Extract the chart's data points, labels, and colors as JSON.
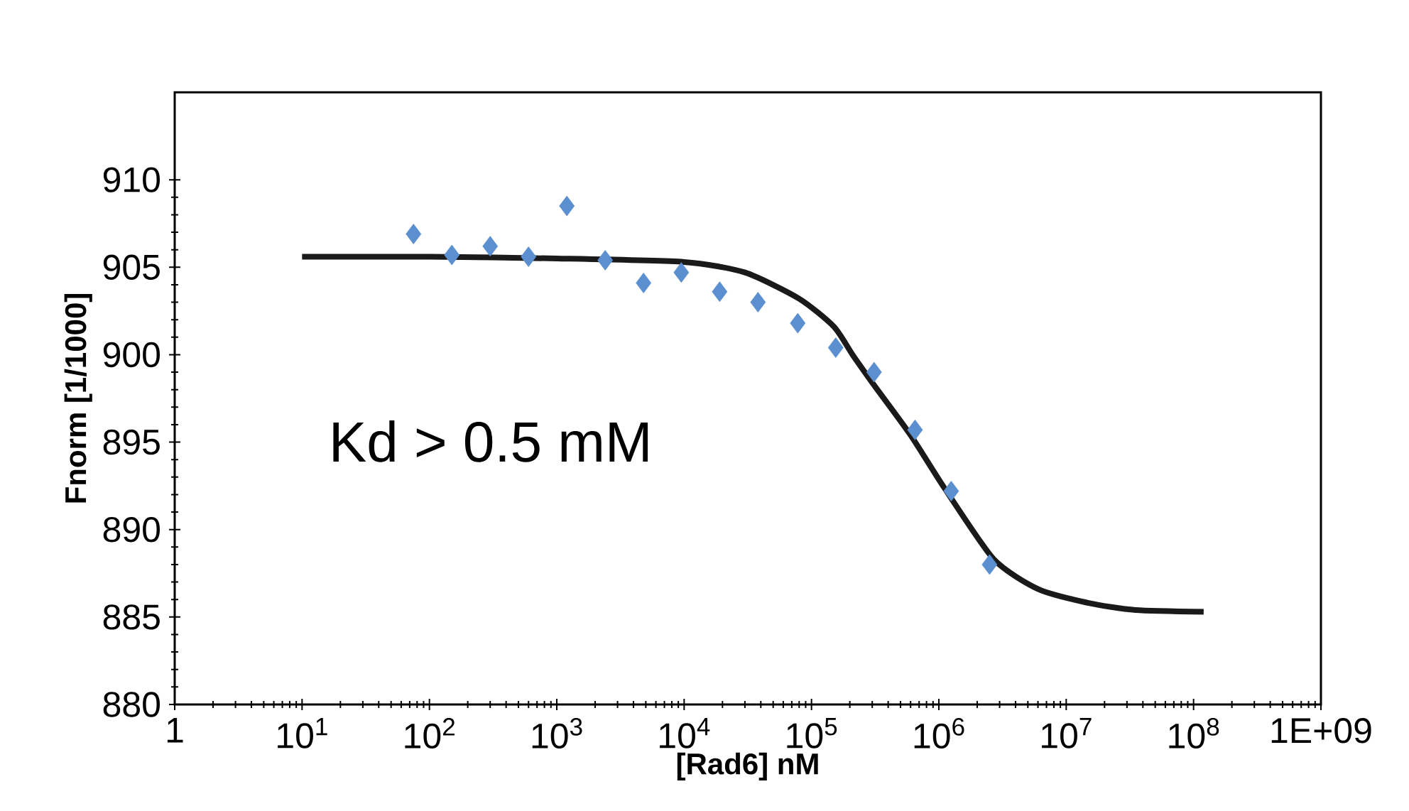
{
  "chart_data": {
    "type": "scatter",
    "xlabel": "[Rad6] nM",
    "ylabel": "Fnorm [1/1000]",
    "log": "x",
    "xlim": [
      1,
      1000000000
    ],
    "ylim": [
      880,
      915
    ],
    "xticks": [
      1,
      {
        "value": 10,
        "label": "10$^{1}$"
      },
      {
        "value": 100,
        "label": "10$^{2}$"
      },
      {
        "value": 1000,
        "label": "10$^{3}$"
      },
      {
        "value": 10000,
        "label": "10$^{4}$"
      },
      {
        "value": 100000,
        "label": "10$^{5}$"
      },
      {
        "value": 1000000,
        "label": "10$^{6}$"
      },
      {
        "value": 10000000,
        "label": "10$^{7}$"
      },
      {
        "value": 100000000,
        "label": "10$^{8}$"
      },
      {
        "value": 1000000000,
        "label": "1E+09"
      }
    ],
    "yticks": [
      880,
      885,
      890,
      895,
      900,
      905,
      910
    ],
    "annotations": [
      "Kd > 0.5 mM"
    ],
    "series": [
      {
        "marker": "diamond",
        "color": "#5b8fd0",
        "x": [
          75,
          150,
          300,
          600,
          1200,
          2400,
          4800,
          9500,
          19000,
          38000,
          78000,
          155000,
          310000,
          650000,
          1250000,
          2500000
        ],
        "values": [
          906.9,
          905.7,
          906.2,
          905.6,
          908.5,
          905.4,
          904.1,
          904.7,
          903.6,
          903.0,
          901.8,
          900.4,
          899.0,
          895.7,
          892.2,
          888.0
        ]
      },
      {
        "type": "line",
        "marker": "none",
        "color": "#1a1a1a",
        "x": [
          10,
          100,
          1000,
          10000,
          30000,
          80000,
          150000,
          210000,
          300000,
          600000,
          1100000,
          2700000,
          6000000,
          15000000,
          35000000,
          120000000
        ],
        "values": [
          905.6,
          905.6,
          905.5,
          905.3,
          904.7,
          903.2,
          901.6,
          900.0,
          898.4,
          895.4,
          892.4,
          888.3,
          886.6,
          885.8,
          885.4,
          885.3
        ]
      }
    ]
  }
}
